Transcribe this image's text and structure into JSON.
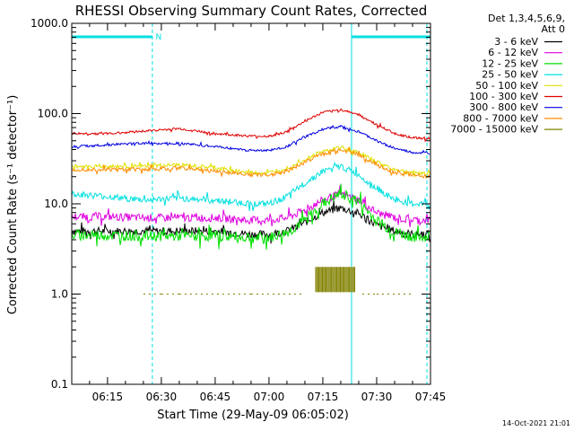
{
  "chart_data": {
    "type": "line",
    "title": "RHESSI Observing Summary Count Rates, Corrected",
    "xlabel": "Start Time (29-May-09 06:05:02)",
    "ylabel": "Corrected Count Rate (s⁻¹ detector⁻¹)",
    "y_scale": "log",
    "ylim": [
      0.1,
      1000.0
    ],
    "xlim": [
      "06:05:02",
      "07:45:00"
    ],
    "x_ticks": [
      "06:15",
      "06:30",
      "06:45",
      "07:00",
      "07:15",
      "07:30",
      "07:45"
    ],
    "y_ticks": [
      "0.1",
      "1.0",
      "10.0",
      "100.0",
      "1000.0"
    ],
    "legend_header": [
      "Det 1,3,4,5,6,9,",
      "Att 0"
    ],
    "legend_position": "right",
    "grid": false,
    "timestamp": "14-Oct-2021 21:01",
    "night_marker": "N",
    "night_intervals": [
      [
        "06:05:02",
        "06:27:30"
      ],
      [
        "07:23:00",
        "07:45:00"
      ]
    ],
    "vertical_markers": [
      "06:05:02",
      "06:27:30",
      "07:23:00",
      "07:44:00"
    ],
    "series": [
      {
        "name": "3 - 6 keV",
        "color": "#000000",
        "x": [
          "06:05",
          "06:15",
          "06:25",
          "06:35",
          "06:45",
          "06:55",
          "07:00",
          "07:05",
          "07:10",
          "07:15",
          "07:20",
          "07:25",
          "07:30",
          "07:35",
          "07:40",
          "07:45"
        ],
        "values": [
          5.0,
          5.0,
          5.0,
          5.0,
          5.0,
          4.6,
          4.6,
          5.0,
          6.2,
          8.0,
          9.0,
          7.8,
          5.8,
          5.0,
          4.6,
          4.6
        ]
      },
      {
        "name": "6 - 12 keV",
        "color": "#e000e0",
        "x": [
          "06:05",
          "06:15",
          "06:25",
          "06:35",
          "06:45",
          "06:55",
          "07:00",
          "07:05",
          "07:10",
          "07:15",
          "07:20",
          "07:25",
          "07:30",
          "07:35",
          "07:40",
          "07:45"
        ],
        "values": [
          7.2,
          7.2,
          7.0,
          7.0,
          7.0,
          6.6,
          6.6,
          7.0,
          8.5,
          11.0,
          13.0,
          11.0,
          8.0,
          7.0,
          6.6,
          6.6
        ]
      },
      {
        "name": "12 - 25 keV",
        "color": "#00e000",
        "x": [
          "06:05",
          "06:15",
          "06:25",
          "06:35",
          "06:45",
          "06:55",
          "07:00",
          "07:05",
          "07:10",
          "07:15",
          "07:20",
          "07:25",
          "07:30",
          "07:35",
          "07:40",
          "07:45"
        ],
        "values": [
          4.5,
          4.5,
          4.4,
          4.4,
          4.4,
          4.2,
          4.2,
          4.8,
          6.5,
          10.0,
          13.0,
          10.5,
          6.5,
          4.8,
          4.3,
          4.3
        ]
      },
      {
        "name": "25 - 50 keV",
        "color": "#00e0e0",
        "x": [
          "06:05",
          "06:15",
          "06:25",
          "06:35",
          "06:45",
          "06:55",
          "07:00",
          "07:05",
          "07:10",
          "07:15",
          "07:20",
          "07:25",
          "07:30",
          "07:35",
          "07:40",
          "07:45"
        ],
        "values": [
          13.0,
          12.0,
          11.0,
          11.5,
          11.0,
          10.0,
          10.0,
          12.0,
          17.0,
          23.0,
          26.0,
          21.0,
          15.0,
          11.0,
          10.0,
          10.0
        ]
      },
      {
        "name": "50 - 100 keV",
        "color": "#e0e000",
        "x": [
          "06:05",
          "06:15",
          "06:25",
          "06:35",
          "06:45",
          "06:55",
          "07:00",
          "07:05",
          "07:10",
          "07:15",
          "07:20",
          "07:25",
          "07:30",
          "07:35",
          "07:40",
          "07:45"
        ],
        "values": [
          26.0,
          26.0,
          26.0,
          27.0,
          25.0,
          22.0,
          22.0,
          25.0,
          31.0,
          38.0,
          42.0,
          37.0,
          29.0,
          24.0,
          22.0,
          22.0
        ]
      },
      {
        "name": "100 - 300 keV",
        "color": "#e00000",
        "x": [
          "06:05",
          "06:15",
          "06:25",
          "06:35",
          "06:45",
          "06:55",
          "07:00",
          "07:05",
          "07:10",
          "07:15",
          "07:20",
          "07:25",
          "07:30",
          "07:35",
          "07:40",
          "07:45"
        ],
        "values": [
          60.0,
          60.0,
          64.0,
          68.0,
          60.0,
          56.0,
          56.0,
          63.0,
          82.0,
          103.0,
          110.0,
          98.0,
          75.0,
          60.0,
          54.0,
          53.0
        ]
      },
      {
        "name": "300 - 800 keV",
        "color": "#0000e0",
        "x": [
          "06:05",
          "06:15",
          "06:25",
          "06:35",
          "06:45",
          "06:55",
          "07:00",
          "07:05",
          "07:10",
          "07:15",
          "07:20",
          "07:25",
          "07:30",
          "07:35",
          "07:40",
          "07:45"
        ],
        "values": [
          43.0,
          45.0,
          47.0,
          47.0,
          43.0,
          39.0,
          39.0,
          43.0,
          55.0,
          67.0,
          72.0,
          63.0,
          50.0,
          41.0,
          37.0,
          36.0
        ]
      },
      {
        "name": "800 - 7000 keV",
        "color": "#ff8c00",
        "x": [
          "06:05",
          "06:15",
          "06:25",
          "06:35",
          "06:45",
          "06:55",
          "07:00",
          "07:05",
          "07:10",
          "07:15",
          "07:20",
          "07:25",
          "07:30",
          "07:35",
          "07:40",
          "07:45"
        ],
        "values": [
          24.0,
          24.0,
          24.0,
          25.0,
          23.0,
          21.0,
          21.0,
          23.0,
          29.0,
          36.0,
          40.0,
          35.0,
          27.0,
          22.0,
          21.0,
          20.0
        ]
      },
      {
        "name": "7000 - 15000 keV",
        "color": "#808000",
        "x": [
          "06:25",
          "06:30",
          "06:33",
          "06:35",
          "06:55",
          "07:10",
          "07:13",
          "07:15",
          "07:20",
          "07:24",
          "07:26",
          "07:30",
          "07:40"
        ],
        "values": [
          1.0,
          1.0,
          1.0,
          1.0,
          1.0,
          1.0,
          2.0,
          2.0,
          2.0,
          2.0,
          1.0,
          1.0,
          1.0
        ]
      }
    ]
  }
}
